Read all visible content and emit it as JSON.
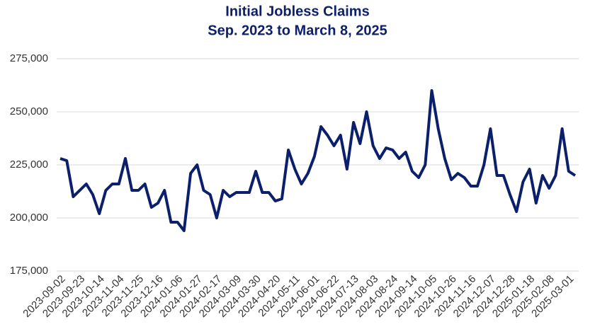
{
  "chart_data": {
    "type": "line",
    "title": "Initial Jobless Claims",
    "subtitle": "Sep. 2023 to March 8, 2025",
    "categories": [
      "2023-09-02",
      null,
      null,
      "2023-09-23",
      null,
      null,
      "2023-10-14",
      null,
      null,
      "2023-11-04",
      null,
      null,
      "2023-11-25",
      null,
      null,
      "2023-12-16",
      null,
      null,
      "2024-01-06",
      null,
      null,
      "2024-01-27",
      null,
      null,
      "2024-02-17",
      null,
      null,
      "2024-03-09",
      null,
      null,
      "2024-03-30",
      null,
      null,
      "2024-04-20",
      null,
      null,
      "2024-05-11",
      null,
      null,
      "2024-06-01",
      null,
      null,
      "2024-06-22",
      null,
      null,
      "2024-07-13",
      null,
      null,
      "2024-08-03",
      null,
      null,
      "2024-08-24",
      null,
      null,
      "2024-09-14",
      null,
      null,
      "2024-10-05",
      null,
      null,
      "2024-10-26",
      null,
      null,
      "2024-11-16",
      null,
      null,
      "2024-12-07",
      null,
      null,
      "2024-12-28",
      null,
      null,
      "2025-01-18",
      null,
      null,
      "2025-02-08",
      null,
      null,
      "2025-03-01",
      null
    ],
    "series": [
      {
        "name": "Initial Jobless Claims",
        "color": "#0b1f6b",
        "values": [
          228000,
          227000,
          210000,
          213000,
          216000,
          211000,
          202000,
          213000,
          216000,
          216000,
          228000,
          213000,
          213000,
          216000,
          205000,
          207000,
          213000,
          198000,
          198000,
          194000,
          221000,
          225000,
          213000,
          211000,
          200000,
          213000,
          210000,
          212000,
          212000,
          212000,
          222000,
          212000,
          212000,
          208000,
          209000,
          232000,
          223000,
          216000,
          221000,
          229000,
          243000,
          239000,
          234000,
          239000,
          223000,
          245000,
          235000,
          250000,
          234000,
          228000,
          233000,
          232000,
          228000,
          231000,
          222000,
          219000,
          225000,
          260000,
          242000,
          228000,
          218000,
          221000,
          219000,
          215000,
          215000,
          225000,
          242000,
          220000,
          220000,
          211000,
          203000,
          217000,
          223000,
          207000,
          220000,
          214000,
          220000,
          242000,
          222000,
          220000
        ]
      }
    ],
    "ylim": [
      175000,
      275000
    ],
    "yticks": [
      {
        "value": 175000,
        "label": "175,000"
      },
      {
        "value": 200000,
        "label": "200,000"
      },
      {
        "value": 225000,
        "label": "225,000"
      },
      {
        "value": 250000,
        "label": "250,000"
      },
      {
        "value": 275000,
        "label": "275,000"
      }
    ],
    "grid": true
  }
}
